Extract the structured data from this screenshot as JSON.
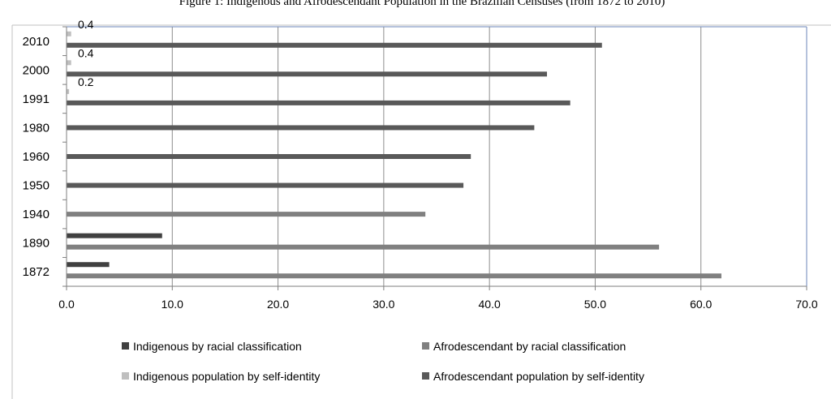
{
  "chart_data": {
    "type": "bar",
    "orientation": "horizontal",
    "title": "Figure 1: Indigenous and Afrodescendant Population in the Brazilian Censuses (from 1872 to 2010)",
    "categories": [
      "1872",
      "1890",
      "1940",
      "1950",
      "1960",
      "1980",
      "1991",
      "2000",
      "2010"
    ],
    "xlim": [
      0,
      70
    ],
    "xticks": [
      "0.0",
      "10.0",
      "20.0",
      "30.0",
      "40.0",
      "50.0",
      "60.0",
      "70.0"
    ],
    "grid": "vertical gridlines",
    "legend_position": "bottom",
    "series": [
      {
        "name": "Indigenous by racial classification",
        "color": "#404040",
        "values": [
          4.0,
          9.0,
          null,
          null,
          null,
          null,
          null,
          null,
          null
        ]
      },
      {
        "name": "Afrodescendant by racial classification",
        "color": "#808080",
        "values": [
          61.9,
          56.0,
          33.9,
          null,
          null,
          null,
          null,
          null,
          null
        ]
      },
      {
        "name": "Indigenous population by self-identity",
        "color": "#bfbfbf",
        "values": [
          null,
          null,
          null,
          null,
          null,
          null,
          0.2,
          0.4,
          0.4
        ],
        "labels": [
          null,
          null,
          null,
          null,
          null,
          null,
          "0.2",
          "0.4",
          "0.4"
        ]
      },
      {
        "name": "Afrodescendant population by self-identity",
        "color": "#595959",
        "values": [
          null,
          null,
          null,
          37.5,
          38.2,
          44.2,
          47.6,
          45.4,
          50.6
        ]
      }
    ]
  }
}
